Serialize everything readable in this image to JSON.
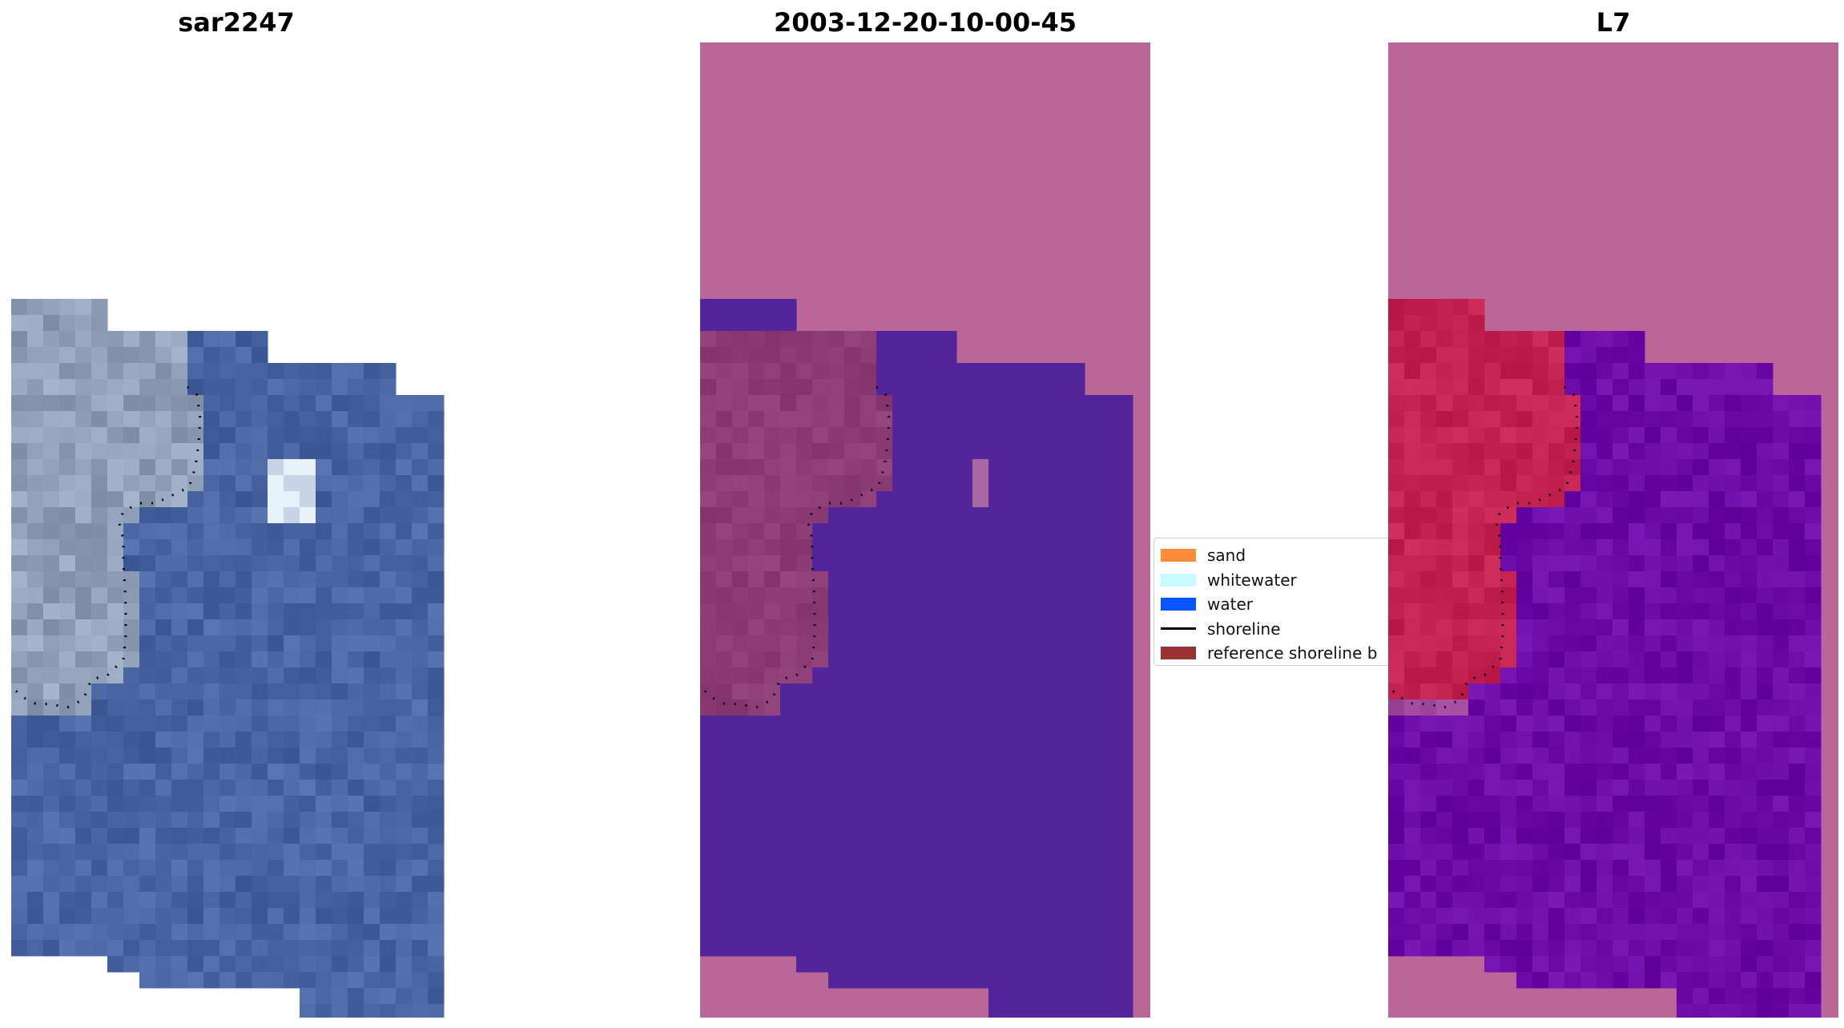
{
  "panels": [
    {
      "title": "sar2247"
    },
    {
      "title": "2003-12-20-10-00-45"
    },
    {
      "title": "L7"
    }
  ],
  "legend": {
    "items": [
      {
        "label": "sand",
        "color": "#ff8c3b"
      },
      {
        "label": "whitewater",
        "color": "#c8fbff"
      },
      {
        "label": "water",
        "color": "#0a55ff"
      },
      {
        "label": "shoreline",
        "color": "#000000",
        "kind": "line"
      },
      {
        "label": "reference shoreline b",
        "color": "#993333"
      }
    ]
  },
  "colors": {
    "classified_land": "#bb6698",
    "classified_water": "#53249a",
    "classified_buffer": "#8c3d76",
    "rgb_water": "#4a66a2",
    "rgb_land": "#8fa0b8",
    "ndwi_land": "#c42250",
    "ndwi_water": "#6c0aa8",
    "shoreline": "#000000"
  }
}
